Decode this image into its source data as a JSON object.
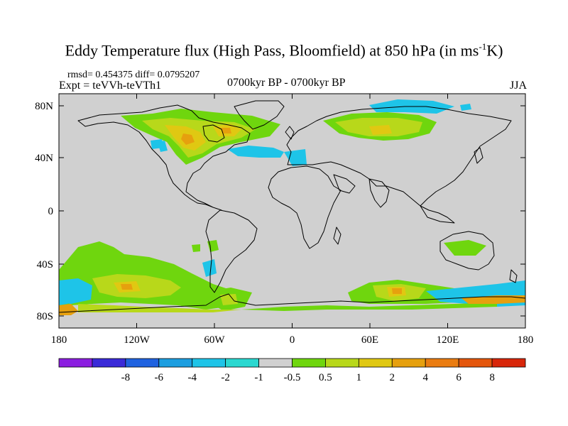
{
  "figure": {
    "title_main": "Eddy Temperature flux (High Pass, Bloomfield) at 850 hPa (in ms",
    "title_sup": "-1",
    "title_end": "K)",
    "stats": "rmsd= 0.454375 diff= 0.0795207",
    "experiment": "Expt = teVVh-teVTh1",
    "period": "0700kyr BP - 0700kyr BP",
    "season": "JJA"
  },
  "axes": {
    "lat_labels": [
      "80N",
      "40N",
      "0",
      "40S",
      "80S"
    ],
    "lon_labels": [
      "180",
      "120W",
      "60W",
      "0",
      "60E",
      "120E",
      "180"
    ]
  },
  "colorbar": {
    "colors": [
      "#8b1ee0",
      "#3a2ad8",
      "#1f62e0",
      "#1c9ee0",
      "#1ec4e8",
      "#2ad8d0",
      "#d0d0d0",
      "#6fd60e",
      "#b8d81a",
      "#e0c812",
      "#e6a00e",
      "#ea7c10",
      "#e4560c",
      "#d8260a"
    ],
    "labels": [
      "-8",
      "-6",
      "-4",
      "-2",
      "-1",
      "-0.5",
      "0.5",
      "1",
      "2",
      "4",
      "6",
      "8"
    ]
  },
  "colors": {
    "land_gray": "#d0d0d0",
    "coast": "#000000"
  }
}
